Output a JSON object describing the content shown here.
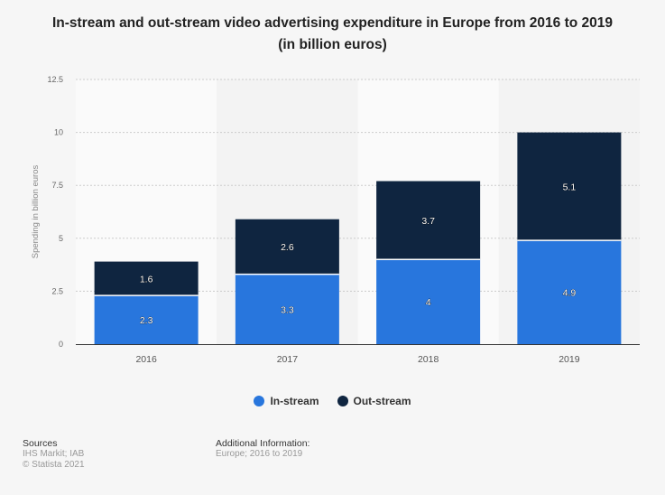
{
  "title_line1": "In-stream and out-stream video advertising expenditure in Europe from 2016 to 2019",
  "title_line2": "(in billion euros)",
  "chart_data": {
    "type": "bar",
    "stacked": true,
    "categories": [
      "2016",
      "2017",
      "2018",
      "2019"
    ],
    "series": [
      {
        "name": "In-stream",
        "values": [
          2.3,
          3.3,
          4,
          4.9
        ],
        "color": "#2876dd"
      },
      {
        "name": "Out-stream",
        "values": [
          1.6,
          2.6,
          3.7,
          5.1
        ],
        "color": "#0f2540"
      }
    ],
    "ylabel": "Spending in billion euros",
    "ylim": [
      0,
      12.5
    ],
    "yticks": [
      "0",
      "2.5",
      "5",
      "7.5",
      "10",
      "12.5"
    ],
    "grid": true,
    "legend_position": "bottom"
  },
  "footer": {
    "sources_label": "Sources",
    "sources": "IHS Markit; IAB",
    "copyright": "© Statista 2021",
    "additional_label": "Additional Information:",
    "additional": "Europe; 2016 to 2019"
  }
}
